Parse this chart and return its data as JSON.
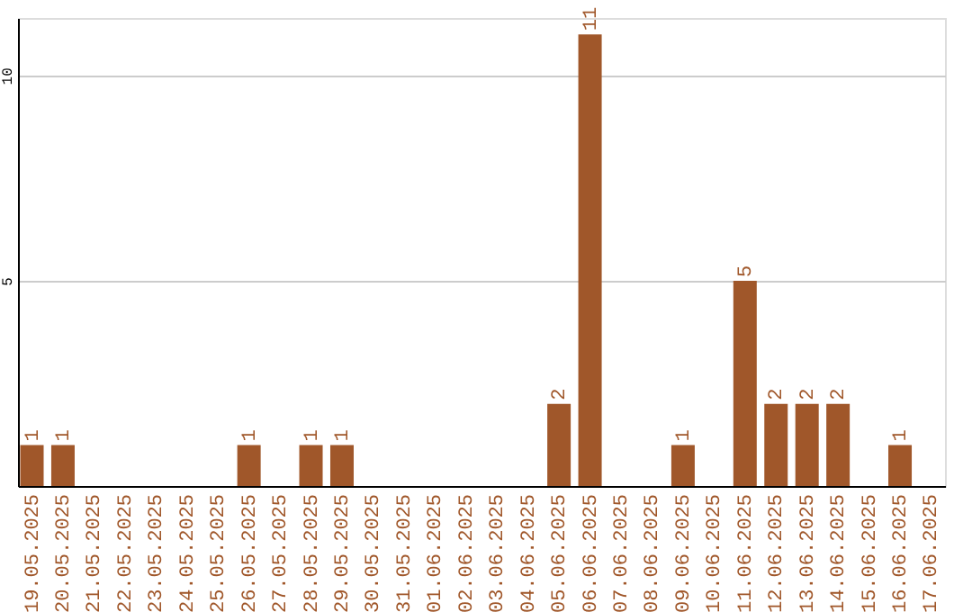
{
  "chart_data": {
    "type": "bar",
    "categories": [
      "19.05.2025",
      "20.05.2025",
      "21.05.2025",
      "22.05.2025",
      "23.05.2025",
      "24.05.2025",
      "25.05.2025",
      "26.05.2025",
      "27.05.2025",
      "28.05.2025",
      "29.05.2025",
      "30.05.2025",
      "31.05.2025",
      "01.06.2025",
      "02.06.2025",
      "03.06.2025",
      "04.06.2025",
      "05.06.2025",
      "06.06.2025",
      "07.06.2025",
      "08.06.2025",
      "09.06.2025",
      "10.06.2025",
      "11.06.2025",
      "12.06.2025",
      "13.06.2025",
      "14.06.2025",
      "15.06.2025",
      "16.06.2025",
      "17.06.2025"
    ],
    "values": [
      1,
      1,
      0,
      0,
      0,
      0,
      0,
      1,
      0,
      1,
      1,
      0,
      0,
      0,
      0,
      0,
      0,
      2,
      11,
      0,
      0,
      1,
      0,
      5,
      2,
      2,
      2,
      0,
      1,
      0
    ],
    "value_labels": [
      "1",
      "1",
      null,
      null,
      null,
      null,
      null,
      "1",
      null,
      "1",
      "1",
      null,
      null,
      null,
      null,
      null,
      null,
      "2",
      "11",
      null,
      null,
      "1",
      null,
      "5",
      "2",
      "2",
      "2",
      null,
      "1",
      null
    ],
    "color": "#a0572a",
    "ylim": [
      0,
      11.4
    ],
    "yticks": [
      5,
      10
    ],
    "grid": "y"
  }
}
